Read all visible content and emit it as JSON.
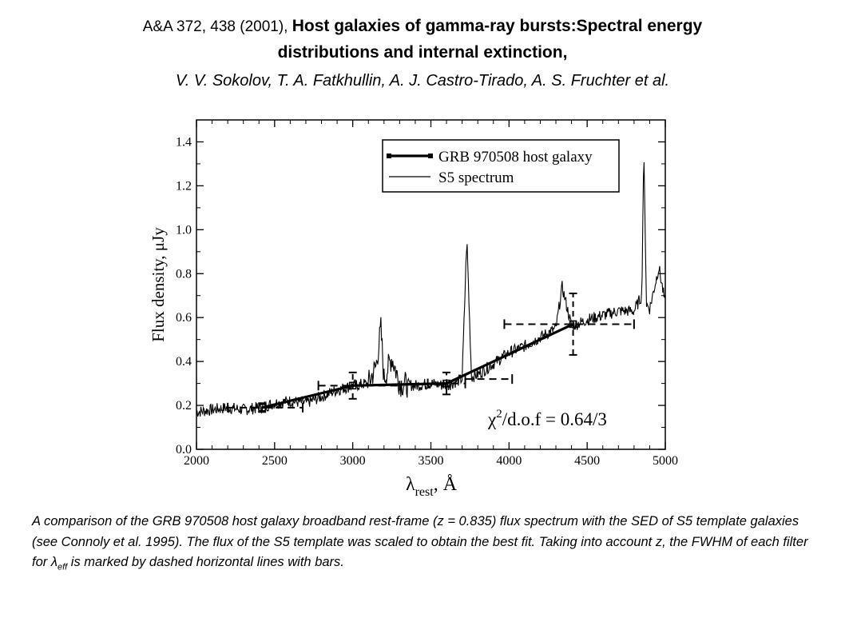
{
  "header": {
    "citation": "A&A 372, 438 (2001),",
    "title_part1": "Host galaxies of gamma-ray bursts:Spectral energy",
    "title_part2": "distributions and internal extinction,",
    "authors": "V. V. Sokolov, T. A. Fatkhullin, A. J. Castro-Tirado, A. S. Fruchter et al."
  },
  "caption": {
    "text_before": "A comparison of the GRB 970508 host galaxy broadband rest-frame (z = 0.835) flux spectrum with the SED of S5 template galaxies (see Connoly et al. 1995). The flux of the S5 template was scaled to obtain the best fit. Taking into account z, the FWHM of each filter for λ",
    "subscript": "eff",
    "text_after": " is marked by dashed horizontal lines with bars."
  },
  "chart_data": {
    "type": "line",
    "xlabel_main": "λ",
    "xlabel_sub": "rest",
    "xlabel_unit": ", Å",
    "ylabel": "Flux density, μJy",
    "xlim": [
      2000,
      5000
    ],
    "ylim": [
      0.0,
      1.5
    ],
    "xticks": [
      2000,
      2500,
      3000,
      3500,
      4000,
      4500,
      5000
    ],
    "xtick_labels": [
      "2000",
      "2500",
      "3000",
      "3500",
      "4000",
      "4500",
      "5000"
    ],
    "yticks": [
      0.0,
      0.2,
      0.4,
      0.6,
      0.8,
      1.0,
      1.2,
      1.4
    ],
    "ytick_labels": [
      "0.0",
      "0.2",
      "0.4",
      "0.6",
      "0.8",
      "1.0",
      "1.2",
      "1.4"
    ],
    "legend_position": "top-right",
    "annotation": "χ²/d.o.f = 0.64/3",
    "annotation_chi": "χ",
    "annotation_sup": "2",
    "annotation_rest": "/d.o.f = 0.64/3",
    "series": [
      {
        "name": "GRB 970508 host galaxy",
        "style": "thick line with square markers",
        "x": [
          2420,
          3000,
          3600,
          4410
        ],
        "y": [
          0.19,
          0.29,
          0.3,
          0.57
        ]
      },
      {
        "name": "S5 spectrum",
        "style": "thin line",
        "x": [
          2000,
          2100,
          2200,
          2300,
          2400,
          2500,
          2600,
          2700,
          2800,
          2900,
          3000,
          3100,
          3150,
          3180,
          3200,
          3250,
          3300,
          3400,
          3500,
          3600,
          3700,
          3730,
          3760,
          3800,
          3900,
          4000,
          4100,
          4200,
          4300,
          4340,
          4400,
          4500,
          4600,
          4700,
          4800,
          4850,
          4862,
          4880,
          4900,
          4959,
          5000
        ],
        "y": [
          0.17,
          0.18,
          0.19,
          0.18,
          0.19,
          0.21,
          0.22,
          0.21,
          0.24,
          0.27,
          0.29,
          0.3,
          0.38,
          0.55,
          0.32,
          0.42,
          0.3,
          0.29,
          0.3,
          0.29,
          0.32,
          0.96,
          0.33,
          0.34,
          0.39,
          0.44,
          0.47,
          0.51,
          0.55,
          0.74,
          0.56,
          0.59,
          0.61,
          0.63,
          0.63,
          0.7,
          1.36,
          0.66,
          0.64,
          0.83,
          0.66
        ]
      }
    ],
    "filter_fwhm": [
      {
        "center": 2420,
        "flux": 0.19,
        "x_low": 2200,
        "x_high": 2680,
        "err": 0.02
      },
      {
        "center": 3000,
        "flux": 0.29,
        "x_low": 2780,
        "x_high": 3300,
        "err": 0.06
      },
      {
        "center": 3600,
        "flux": 0.3,
        "x_low": 3480,
        "x_high": 3720,
        "err": 0.05
      },
      {
        "center": 4010,
        "flux": 0.32,
        "x_low": 3720,
        "x_high": 4020,
        "err": 0.0
      },
      {
        "center": 4410,
        "flux": 0.57,
        "x_low": 3970,
        "x_high": 4800,
        "err": 0.14
      }
    ]
  }
}
